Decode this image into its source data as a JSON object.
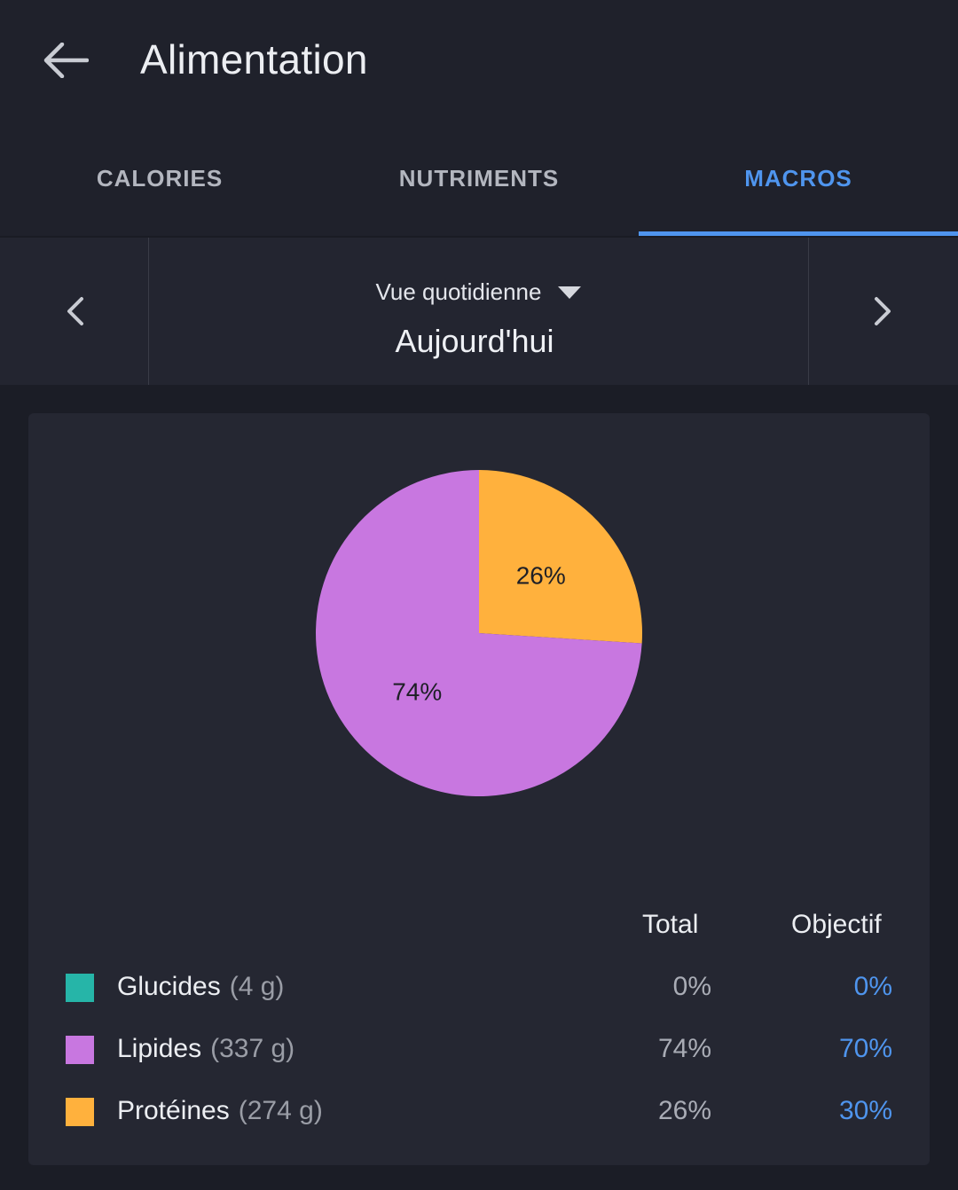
{
  "header": {
    "title": "Alimentation",
    "back_icon": "arrow-left-icon"
  },
  "tabs": [
    {
      "label": "CALORIES",
      "active": false
    },
    {
      "label": "NUTRIMENTS",
      "active": false
    },
    {
      "label": "MACROS",
      "active": true
    }
  ],
  "date_nav": {
    "view_label": "Vue quotidienne",
    "current_date": "Aujourd'hui",
    "prev_icon": "chevron-left-icon",
    "next_icon": "chevron-right-icon",
    "dropdown_icon": "caret-down-icon"
  },
  "colors": {
    "accent": "#4f95ee",
    "glucides": "#26b5a8",
    "lipides": "#c877e0",
    "proteines": "#ffb13d"
  },
  "chart_data": {
    "type": "pie",
    "slices": [
      {
        "label": "Protéines",
        "value": 26,
        "color": "#ffb13d",
        "display": "26%"
      },
      {
        "label": "Lipides",
        "value": 74,
        "color": "#c877e0",
        "display": "74%"
      },
      {
        "label": "Glucides",
        "value": 0,
        "color": "#26b5a8",
        "display": ""
      }
    ]
  },
  "table": {
    "col_total": "Total",
    "col_goal": "Objectif",
    "rows": [
      {
        "name": "Glucides",
        "grams": "(4 g)",
        "total": "0%",
        "goal": "0%",
        "color": "#26b5a8"
      },
      {
        "name": "Lipides",
        "grams": "(337 g)",
        "total": "74%",
        "goal": "70%",
        "color": "#c877e0"
      },
      {
        "name": "Protéines",
        "grams": "(274 g)",
        "total": "26%",
        "goal": "30%",
        "color": "#ffb13d"
      }
    ]
  }
}
